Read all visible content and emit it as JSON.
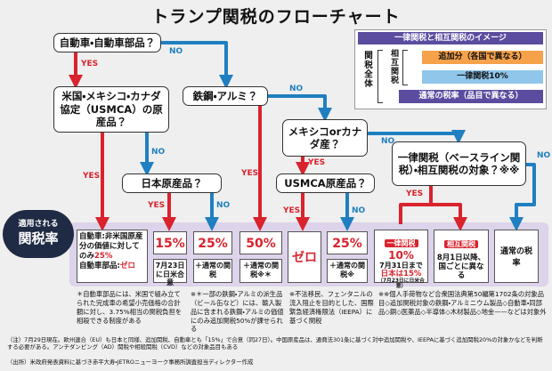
{
  "title": "トランプ関税のフローチャート",
  "legend": {
    "heading": "一律関税と相互関税のイメージ",
    "whole": "関税全体",
    "reciprocal": "相互関税",
    "rows": [
      "追加分（各国で異なる）",
      "一律関税10%",
      "通常の税率（品目で異なる）"
    ]
  },
  "nodes": [
    {
      "label": "自動車・自動車部品？"
    },
    {
      "label": "米国・メキシコ・カナダ協定（USMCA）の原産品？"
    },
    {
      "label": "鉄鋼・アルミ？"
    },
    {
      "label": "日本原産品？"
    },
    {
      "label": "メキシコorカナダ産？"
    },
    {
      "label": "USMCA原産品？"
    },
    {
      "label": "一律関税（ベースライン関税）・相互関税の対象？※※"
    }
  ],
  "edges": [
    {
      "label": "YES"
    },
    {
      "label": "NO"
    },
    {
      "label": "YES"
    },
    {
      "label": "NO"
    },
    {
      "label": "YES"
    },
    {
      "label": "NO"
    },
    {
      "label": "YES"
    },
    {
      "label": "NO"
    },
    {
      "label": "YES"
    },
    {
      "label": "NO"
    },
    {
      "label": "YES"
    },
    {
      "label": "NO"
    },
    {
      "label": "YES"
    },
    {
      "label": "NO"
    }
  ],
  "result_heading": [
    "適用される",
    "関税率"
  ],
  "results": [
    {
      "parts": [
        "自動車:非米国原産分の価値に対してのみ",
        "25%",
        "自動車部品:",
        "ゼロ"
      ]
    },
    {
      "rate": "15%",
      "note": "7月23日に日米合意"
    },
    {
      "rate": "25%",
      "note": "＋通常の関税"
    },
    {
      "rate": "50%",
      "note": "＋通常の関税※＊"
    },
    {
      "rate": "ゼロ"
    },
    {
      "rate": "25%",
      "note": "＋通常の関税※"
    },
    {
      "tag": "一律関税",
      "rate": "10%",
      "note": "7月31日まで",
      "japan": "日本は15%",
      "japan_note": "（7月23日に日米合意）"
    },
    {
      "tag": "相互関税",
      "note": "8月1日以降、国ごとに異なる"
    },
    {
      "rate": "通常の税率"
    }
  ],
  "notes": [
    "＊自動車部品には、米国で組み立てられた完成車の希望小売価格の合計額に対し、3.75%相当の関税負担を相殺できる制度がある",
    "※＊一部の鉄鋼・アルミの派生品（ビール缶など）には、輸入製品に含まれる鉄鋼・アルミの価値にのみ追加関税50%が課せられる",
    "※不法移民、フェンタニルの流入阻止を目的とした、国際緊急経済権限法（IEEPA）に基づく関税",
    "※※個人手荷物など合衆国法典第50編第1702条の対象品目◇追加関税対象の鉄鋼・アルミニウム製品◇自動車・同部品◇銅◇医薬品◇半導体◇木材製品◇地金——などは対象外"
  ],
  "footnotes": [
    "（注）7月29日現在。欧州連合（EU）も日本と同様、追加関税、自動車とも「15%」で合意（同27日）。中国原産品は、通商法301条に基づく対中追加関税や、IEEPAに基づく追加関税20%の対象かなどを判断する必要がある。アンチダンピング（AD）関税や相殺関税（CVD）などの対象品目もある",
    "（出所）米政府発表資料に基づき赤平大寿・JETROニューヨーク事務所調査担当ディレクター作成"
  ]
}
